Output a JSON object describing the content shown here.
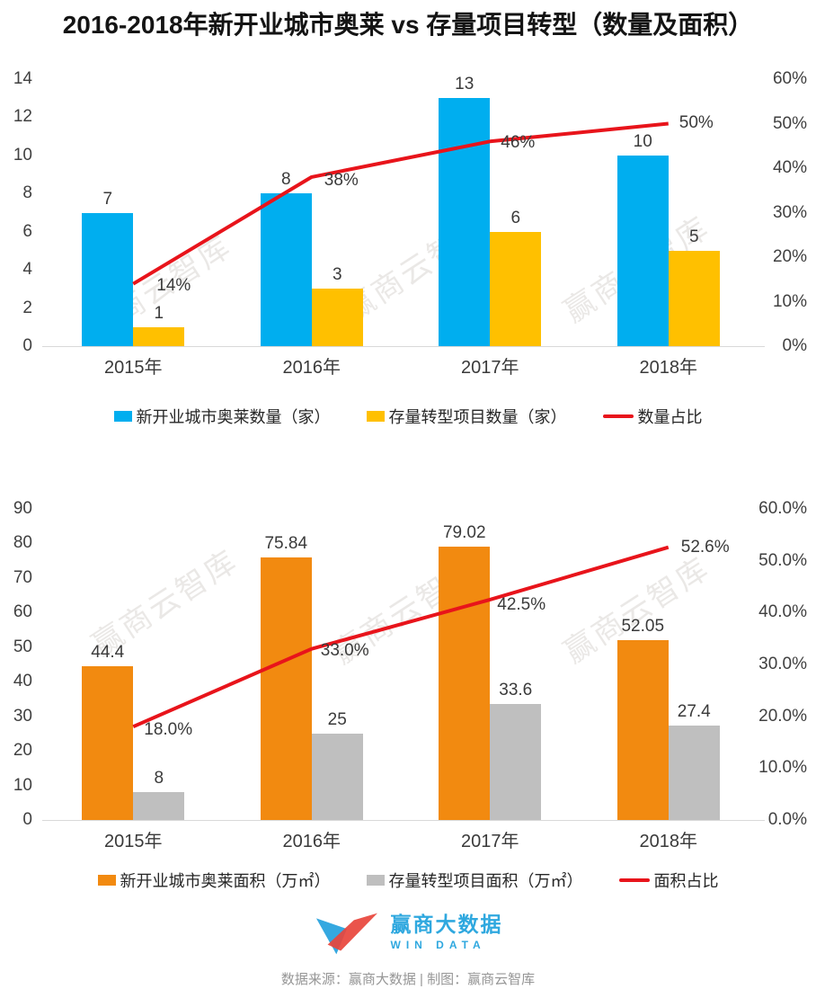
{
  "title": "2016-2018年新开业城市奥莱 vs 存量项目转型（数量及面积）",
  "watermark": {
    "text": "赢商云智库"
  },
  "colors": {
    "blue": "#00AEEF",
    "yellow": "#FFC000",
    "orange": "#F28A10",
    "gray": "#BFBFBF",
    "red": "#E8141B",
    "axis_text": "#404040",
    "label_text": "#3A3A3A",
    "logo_blue": "#2FA8DF",
    "logo_red": "#E8453C",
    "source_text": "#969696"
  },
  "chart_data": [
    {
      "type": "bar+line",
      "categories": [
        "2015年",
        "2016年",
        "2017年",
        "2018年"
      ],
      "series": [
        {
          "name": "新开业城市奥莱数量（家）",
          "color": "blue",
          "values": [
            7,
            8,
            13,
            10
          ],
          "labels": [
            "7",
            "8",
            "13",
            "10"
          ]
        },
        {
          "name": "存量转型项目数量（家）",
          "color": "yellow",
          "values": [
            1,
            3,
            6,
            5
          ],
          "labels": [
            "1",
            "3",
            "6",
            "5"
          ]
        }
      ],
      "line": {
        "name": "数量占比",
        "color": "red",
        "values": [
          14,
          38,
          46,
          50
        ],
        "labels": [
          "14%",
          "38%",
          "46%",
          "50%"
        ]
      },
      "left_axis": {
        "min": 0,
        "max": 14,
        "ticks": [
          "0",
          "2",
          "4",
          "6",
          "8",
          "10",
          "12",
          "14"
        ]
      },
      "right_axis": {
        "min": 0,
        "max": 60,
        "ticks": [
          "0%",
          "10%",
          "20%",
          "30%",
          "40%",
          "50%",
          "60%"
        ]
      },
      "grid": false,
      "legend_position": "bottom"
    },
    {
      "type": "bar+line",
      "categories": [
        "2015年",
        "2016年",
        "2017年",
        "2018年"
      ],
      "series": [
        {
          "name": "新开业城市奥莱面积（万㎡）",
          "color": "orange",
          "values": [
            44.4,
            75.84,
            79.02,
            52.05
          ],
          "labels": [
            "44.4",
            "75.84",
            "79.02",
            "52.05"
          ]
        },
        {
          "name": "存量转型项目面积（万㎡）",
          "color": "gray",
          "values": [
            8,
            25,
            33.6,
            27.4
          ],
          "labels": [
            "8",
            "25",
            "33.6",
            "27.4"
          ]
        }
      ],
      "line": {
        "name": "面积占比",
        "color": "red",
        "values": [
          18.0,
          33.0,
          42.5,
          52.6
        ],
        "labels": [
          "18.0%",
          "33.0%",
          "42.5%",
          "52.6%"
        ]
      },
      "left_axis": {
        "min": 0,
        "max": 90,
        "ticks": [
          "0",
          "10",
          "20",
          "30",
          "40",
          "50",
          "60",
          "70",
          "80",
          "90"
        ]
      },
      "right_axis": {
        "min": 0,
        "max": 60,
        "ticks": [
          "0.0%",
          "10.0%",
          "20.0%",
          "30.0%",
          "40.0%",
          "50.0%",
          "60.0%"
        ]
      },
      "grid": false,
      "legend_position": "bottom"
    }
  ],
  "footer": {
    "logo_cn": "赢商大数据",
    "logo_en": "WIN DATA",
    "source": "数据来源：赢商大数据 | 制图：赢商云智库"
  }
}
